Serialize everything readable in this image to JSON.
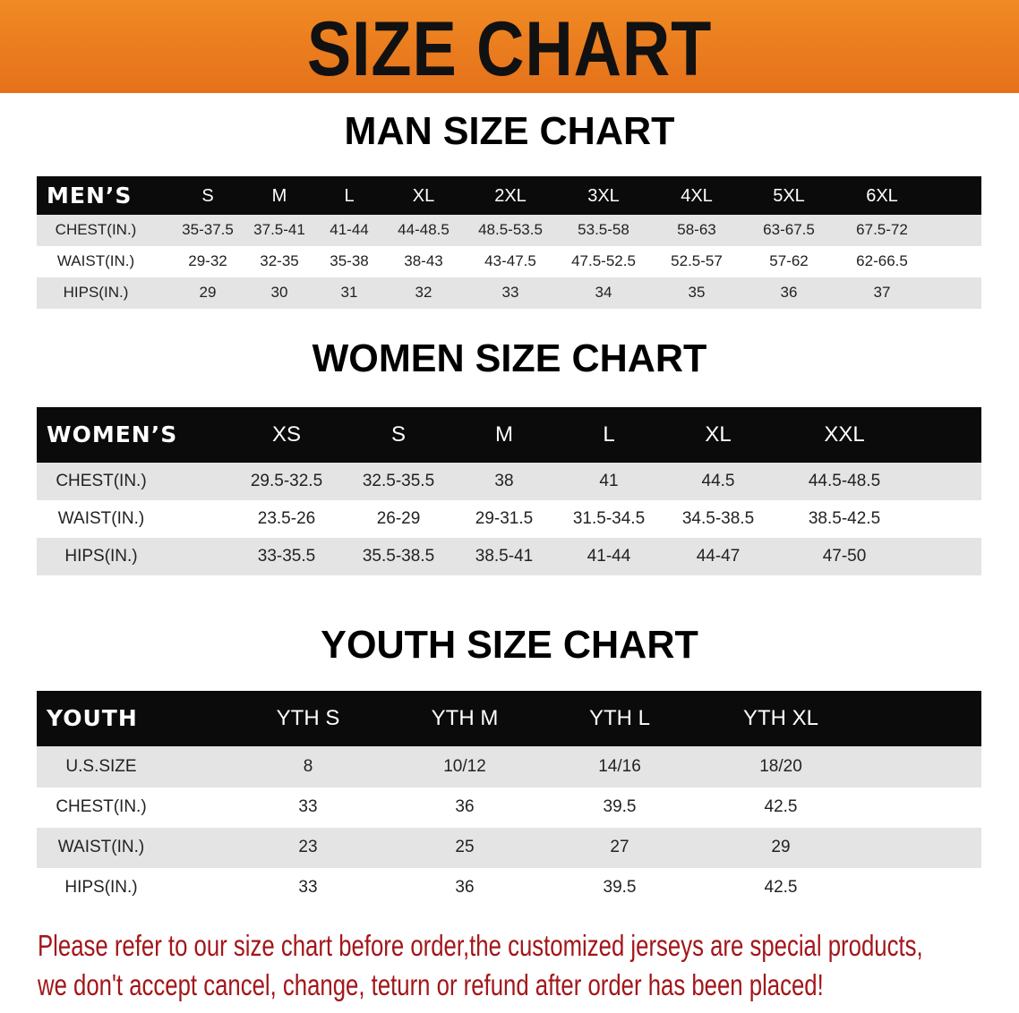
{
  "banner": {
    "title": "SIZE CHART",
    "color": "#ec7c1f"
  },
  "men": {
    "title": "MAN SIZE CHART",
    "header_label": "MEN’S",
    "sizes": [
      "S",
      "M",
      "L",
      "XL",
      "2XL",
      "3XL",
      "4XL",
      "5XL",
      "6XL"
    ],
    "rows": [
      {
        "label": "CHEST(IN.)",
        "values": [
          "35-37.5",
          "37.5-41",
          "41-44",
          "44-48.5",
          "48.5-53.5",
          "53.5-58",
          "58-63",
          "63-67.5",
          "67.5-72"
        ]
      },
      {
        "label": "WAIST(IN.)",
        "values": [
          "29-32",
          "32-35",
          "35-38",
          "38-43",
          "43-47.5",
          "47.5-52.5",
          "52.5-57",
          "57-62",
          "62-66.5"
        ]
      },
      {
        "label": "HIPS(IN.)",
        "values": [
          "29",
          "30",
          "31",
          "32",
          "33",
          "34",
          "35",
          "36",
          "37"
        ]
      }
    ]
  },
  "women": {
    "title": "WOMEN SIZE CHART",
    "header_label": "WOMEN’S",
    "sizes": [
      "XS",
      "S",
      "M",
      "L",
      "XL",
      "XXL"
    ],
    "rows": [
      {
        "label": "CHEST(IN.)",
        "values": [
          "29.5-32.5",
          "32.5-35.5",
          "38",
          "41",
          "44.5",
          "44.5-48.5"
        ]
      },
      {
        "label": "WAIST(IN.)",
        "values": [
          "23.5-26",
          "26-29",
          "29-31.5",
          "31.5-34.5",
          "34.5-38.5",
          "38.5-42.5"
        ]
      },
      {
        "label": "HIPS(IN.)",
        "values": [
          "33-35.5",
          "35.5-38.5",
          "38.5-41",
          "41-44",
          "44-47",
          "47-50"
        ]
      }
    ]
  },
  "youth": {
    "title": "YOUTH SIZE CHART",
    "header_label": "YOUTH",
    "sizes": [
      "YTH S",
      "YTH M",
      "YTH L",
      "YTH XL"
    ],
    "rows": [
      {
        "label": "U.S.SIZE",
        "values": [
          "8",
          "10/12",
          "14/16",
          "18/20"
        ]
      },
      {
        "label": "CHEST(IN.)",
        "values": [
          "33",
          "36",
          "39.5",
          "42.5"
        ]
      },
      {
        "label": "WAIST(IN.)",
        "values": [
          "23",
          "25",
          "27",
          "29"
        ]
      },
      {
        "label": "HIPS(IN.)",
        "values": [
          "33",
          "36",
          "39.5",
          "42.5"
        ]
      }
    ]
  },
  "note": {
    "line1": "Please refer to our size chart before order,the customized jerseys are special products,",
    "line2": "we don't accept cancel, change, teturn or refund after order has been placed!",
    "color": "#a3161a"
  }
}
